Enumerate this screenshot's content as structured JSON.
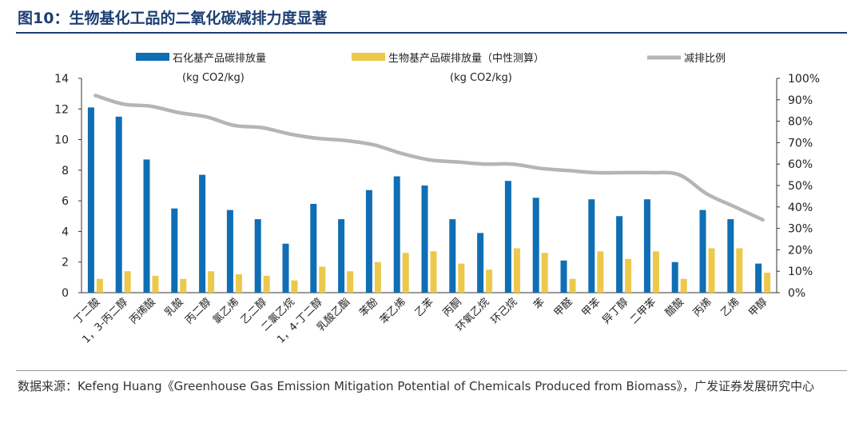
{
  "figure": {
    "title": "图10：生物基化工品的二氧化碳减排力度显著",
    "source": "数据来源：Kefeng Huang《Greenhouse Gas Emission Mitigation Potential of Chemicals Produced from Biomass》，广发证券发展研究中心"
  },
  "colors": {
    "petro": "#0f6eb4",
    "bio": "#ecc94b",
    "ratio": "#b5b5b5",
    "title": "#1d3f73"
  },
  "chart_data": {
    "type": "bar",
    "categories": [
      "丁二酸",
      "1，3-丙二醇",
      "丙烯酸",
      "乳酸",
      "丙二醇",
      "氯乙烯",
      "乙二醇",
      "二氯乙烷",
      "1，4-丁二醇",
      "乳酸乙酯",
      "苯酚",
      "苯乙烯",
      "乙苯",
      "丙酮",
      "环氧乙烷",
      "环己烷",
      "苯",
      "甲醛",
      "甲苯",
      "异丁醇",
      "二甲苯",
      "醋酸",
      "丙烯",
      "乙烯",
      "甲醇"
    ],
    "series": [
      {
        "name": "石化基产品碳排放量",
        "unit": "(kg CO2/kg)",
        "axis": "left",
        "values": [
          12.1,
          11.5,
          8.7,
          5.5,
          7.7,
          5.4,
          4.8,
          3.2,
          5.8,
          4.8,
          6.7,
          7.6,
          7.0,
          4.8,
          3.9,
          7.3,
          6.2,
          2.1,
          6.1,
          5.0,
          6.1,
          2.0,
          5.4,
          4.8,
          1.9
        ]
      },
      {
        "name": "生物基产品碳排放量（中性测算）",
        "unit": "(kg CO2/kg)",
        "axis": "left",
        "values": [
          0.9,
          1.4,
          1.1,
          0.9,
          1.4,
          1.2,
          1.1,
          0.8,
          1.7,
          1.4,
          2.0,
          2.6,
          2.7,
          1.9,
          1.5,
          2.9,
          2.6,
          0.9,
          2.7,
          2.2,
          2.7,
          0.9,
          2.9,
          2.9,
          1.3
        ]
      },
      {
        "name": "减排比例",
        "axis": "right",
        "type": "line",
        "values": [
          92,
          88,
          87,
          84,
          82,
          78,
          77,
          74,
          72,
          71,
          69,
          65,
          62,
          61,
          60,
          60,
          58,
          57,
          56,
          56,
          56,
          55,
          46,
          40,
          34
        ]
      }
    ],
    "y_left": {
      "ylim": [
        0,
        14
      ],
      "ticks": [
        "0",
        "2",
        "4",
        "6",
        "8",
        "10",
        "12",
        "14"
      ]
    },
    "y_right": {
      "ylim": [
        0,
        100
      ],
      "ticks": [
        "0%",
        "10%",
        "20%",
        "30%",
        "40%",
        "50%",
        "60%",
        "70%",
        "80%",
        "90%",
        "100%"
      ]
    },
    "grid": false,
    "legend_position": "top"
  }
}
